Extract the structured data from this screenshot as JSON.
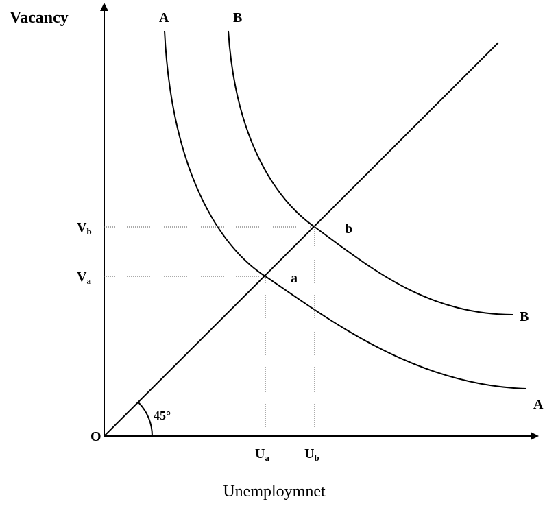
{
  "axes": {
    "y_label": "Vacancy",
    "x_label": "Unemploymnet",
    "origin": "O"
  },
  "angle_label": "45°",
  "curves": [
    {
      "top_label": "A",
      "end_label": "A"
    },
    {
      "top_label": "B",
      "end_label": "B"
    }
  ],
  "points": [
    {
      "label": "a",
      "v_label": {
        "main": "V",
        "sub": "a"
      },
      "u_label": {
        "main": "U",
        "sub": "a"
      }
    },
    {
      "label": "b",
      "v_label": {
        "main": "V",
        "sub": "b"
      },
      "u_label": {
        "main": "U",
        "sub": "b"
      }
    }
  ]
}
